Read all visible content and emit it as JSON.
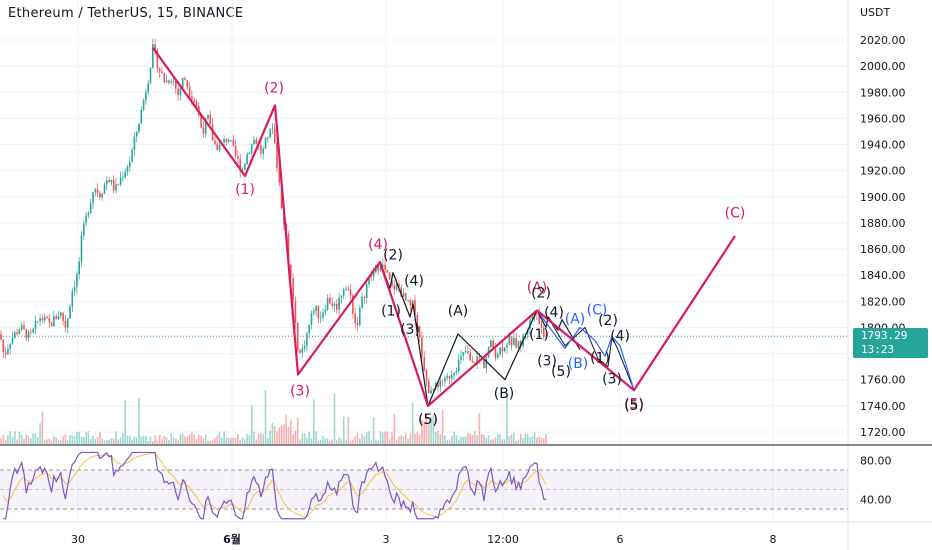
{
  "header": {
    "title": "Ethereum / TetherUS, 15, BINANCE"
  },
  "price_axis": {
    "unit": "USDT"
  },
  "current_price": {
    "price": "1793.29",
    "countdown": "13:23"
  },
  "chart_data": [
    {
      "type": "candlestick",
      "title": "Ethereum / TetherUS, 15, BINANCE",
      "ylabel": "USDT",
      "ylim": [
        1712,
        2030
      ],
      "yticks": [
        "2020.00",
        "2000.00",
        "1980.00",
        "1960.00",
        "1940.00",
        "1920.00",
        "1900.00",
        "1880.00",
        "1860.00",
        "1840.00",
        "1820.00",
        "1800.00",
        "1780.00",
        "1760.00",
        "1740.00",
        "1720.00"
      ],
      "xticks": [
        "30",
        "6월",
        "3",
        "12:00",
        "6",
        "8"
      ],
      "current_price": 1793.29,
      "grid": true,
      "colors": {
        "up": "#26a69a",
        "down": "#ef5350",
        "impulse": "#d81b60",
        "sub": "#131722",
        "correction": "#2962ff"
      },
      "price_path": [
        [
          0,
          1795
        ],
        [
          4,
          1778
        ],
        [
          10,
          1790
        ],
        [
          20,
          1800
        ],
        [
          30,
          1792
        ],
        [
          40,
          1808
        ],
        [
          50,
          1802
        ],
        [
          60,
          1812
        ],
        [
          66,
          1800
        ],
        [
          72,
          1828
        ],
        [
          78,
          1842
        ],
        [
          82,
          1870
        ],
        [
          88,
          1890
        ],
        [
          94,
          1908
        ],
        [
          100,
          1902
        ],
        [
          108,
          1915
        ],
        [
          115,
          1905
        ],
        [
          122,
          1916
        ],
        [
          130,
          1928
        ],
        [
          136,
          1948
        ],
        [
          142,
          1968
        ],
        [
          148,
          1990
        ],
        [
          153,
          2014
        ],
        [
          158,
          2000
        ],
        [
          165,
          1988
        ],
        [
          172,
          1992
        ],
        [
          178,
          1978
        ],
        [
          184,
          1992
        ],
        [
          190,
          1980
        ],
        [
          196,
          1972
        ],
        [
          202,
          1950
        ],
        [
          208,
          1960
        ],
        [
          214,
          1940
        ],
        [
          220,
          1938
        ],
        [
          228,
          1946
        ],
        [
          236,
          1930
        ],
        [
          242,
          1920
        ],
        [
          248,
          1935
        ],
        [
          255,
          1945
        ],
        [
          262,
          1932
        ],
        [
          268,
          1948
        ],
        [
          274,
          1950
        ],
        [
          280,
          1902
        ],
        [
          285,
          1878
        ],
        [
          290,
          1840
        ],
        [
          294,
          1812
        ],
        [
          298,
          1778
        ],
        [
          302,
          1782
        ],
        [
          308,
          1798
        ],
        [
          314,
          1816
        ],
        [
          320,
          1808
        ],
        [
          328,
          1822
        ],
        [
          336,
          1815
        ],
        [
          344,
          1832
        ],
        [
          350,
          1826
        ],
        [
          356,
          1800
        ],
        [
          362,
          1820
        ],
        [
          368,
          1836
        ],
        [
          374,
          1842
        ],
        [
          380,
          1850
        ],
        [
          386,
          1842
        ],
        [
          392,
          1830
        ],
        [
          398,
          1832
        ],
        [
          404,
          1822
        ],
        [
          410,
          1815
        ],
        [
          414,
          1818
        ],
        [
          420,
          1790
        ],
        [
          426,
          1760
        ],
        [
          430,
          1748
        ],
        [
          436,
          1760
        ],
        [
          442,
          1754
        ],
        [
          448,
          1762
        ],
        [
          454,
          1768
        ],
        [
          460,
          1775
        ],
        [
          466,
          1782
        ],
        [
          472,
          1770
        ],
        [
          478,
          1778
        ],
        [
          484,
          1772
        ],
        [
          490,
          1788
        ],
        [
          496,
          1780
        ],
        [
          502,
          1785
        ],
        [
          508,
          1790
        ],
        [
          514,
          1788
        ],
        [
          520,
          1786
        ],
        [
          526,
          1798
        ],
        [
          532,
          1808
        ],
        [
          536,
          1818
        ],
        [
          540,
          1800
        ],
        [
          544,
          1796
        ],
        [
          548,
          1793
        ]
      ],
      "rsi": {
        "ylim": [
          20,
          90
        ],
        "yticks": [
          "80.00",
          "40.00"
        ],
        "upper_band": 70,
        "lower_band": 30,
        "midline": 50
      },
      "annotations": {
        "impulse_path": [
          [
            153,
            2014
          ],
          [
            245,
            1916
          ],
          [
            275,
            1970
          ],
          [
            298,
            1764
          ],
          [
            380,
            1850
          ],
          [
            428,
            1740
          ],
          [
            537,
            1813
          ],
          [
            634,
            1752
          ],
          [
            735,
            1870
          ]
        ],
        "sub_path": [
          [
            380,
            1850
          ],
          [
            390,
            1830
          ],
          [
            393,
            1842
          ],
          [
            410,
            1808
          ],
          [
            413,
            1818
          ],
          [
            428,
            1740
          ],
          [
            458,
            1795
          ],
          [
            505,
            1760
          ],
          [
            537,
            1813
          ],
          [
            546,
            1800
          ],
          [
            548,
            1808
          ],
          [
            558,
            1798
          ],
          [
            562,
            1806
          ],
          [
            580,
            1783
          ]
        ],
        "corr_path": [
          [
            537,
            1813
          ],
          [
            565,
            1784
          ],
          [
            580,
            1800
          ],
          [
            595,
            1790
          ],
          [
            605,
            1778
          ],
          [
            612,
            1793
          ],
          [
            620,
            1786
          ],
          [
            634,
            1752
          ]
        ],
        "abc_path": [
          [
            548,
            1808
          ],
          [
            565,
            1786
          ],
          [
            585,
            1800
          ],
          [
            598,
            1776
          ],
          [
            608,
            1770
          ],
          [
            612,
            1793
          ],
          [
            618,
            1783
          ],
          [
            634,
            1752
          ]
        ],
        "wave_labels": [
          {
            "text": "(2)",
            "x": 274,
            "y": 1980,
            "kind": "impulse"
          },
          {
            "text": "(1)",
            "x": 245,
            "y": 1902,
            "kind": "impulse"
          },
          {
            "text": "(3)",
            "x": 300,
            "y": 1748,
            "kind": "impulse"
          },
          {
            "text": "(4)",
            "x": 378,
            "y": 1860,
            "kind": "impulse"
          },
          {
            "text": "(5)",
            "x": 428,
            "y": 1726,
            "kind": "impulse"
          },
          {
            "text": "(A)",
            "x": 537,
            "y": 1827,
            "kind": "impulse"
          },
          {
            "text": "(5)",
            "x": 634,
            "y": 1738,
            "kind": "impulse"
          },
          {
            "text": "(C)",
            "x": 735,
            "y": 1884,
            "kind": "impulse"
          },
          {
            "text": "(2)",
            "x": 393,
            "y": 1852,
            "kind": "sub"
          },
          {
            "text": "(4)",
            "x": 414,
            "y": 1832,
            "kind": "sub"
          },
          {
            "text": "(1)",
            "x": 391,
            "y": 1809,
            "kind": "sub"
          },
          {
            "text": "(3)",
            "x": 410,
            "y": 1795,
            "kind": "sub"
          },
          {
            "text": "(5)",
            "x": 428,
            "y": 1726,
            "kind": "sub"
          },
          {
            "text": "(A)",
            "x": 458,
            "y": 1809,
            "kind": "sub"
          },
          {
            "text": "(B)",
            "x": 504,
            "y": 1746,
            "kind": "sub"
          },
          {
            "text": "(2)",
            "x": 541,
            "y": 1823,
            "kind": "sub"
          },
          {
            "text": "(4)",
            "x": 554,
            "y": 1808,
            "kind": "sub"
          },
          {
            "text": "(1)",
            "x": 539,
            "y": 1791,
            "kind": "sub"
          },
          {
            "text": "(3)",
            "x": 547,
            "y": 1771,
            "kind": "sub"
          },
          {
            "text": "(5)",
            "x": 561,
            "y": 1763,
            "kind": "sub"
          },
          {
            "text": "(A)",
            "x": 575,
            "y": 1803,
            "kind": "correction"
          },
          {
            "text": "(B)",
            "x": 578,
            "y": 1769,
            "kind": "correction"
          },
          {
            "text": "(C)",
            "x": 597,
            "y": 1810,
            "kind": "correction"
          },
          {
            "text": "(2)",
            "x": 608,
            "y": 1802,
            "kind": "sub"
          },
          {
            "text": "(4)",
            "x": 620,
            "y": 1790,
            "kind": "sub"
          },
          {
            "text": "(1)",
            "x": 600,
            "y": 1773,
            "kind": "sub"
          },
          {
            "text": "(3)",
            "x": 612,
            "y": 1757,
            "kind": "sub"
          },
          {
            "text": "(5)",
            "x": 634,
            "y": 1737,
            "kind": "sub"
          }
        ]
      }
    }
  ]
}
